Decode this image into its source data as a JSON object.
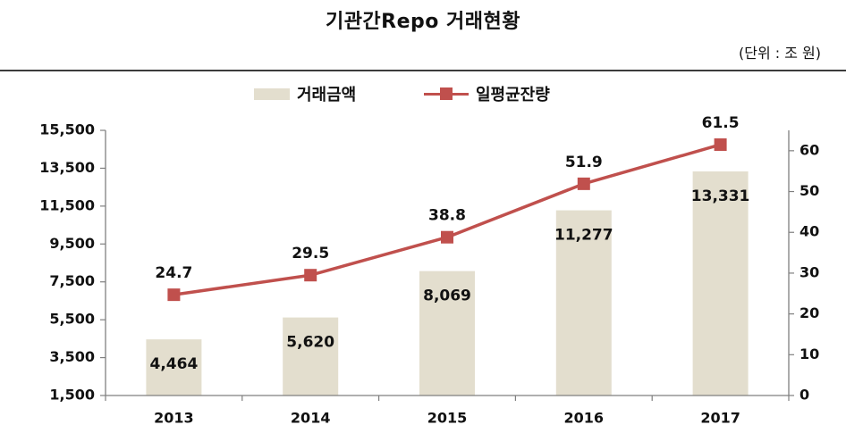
{
  "title": "기관간Repo 거래현황",
  "unit": "(단위 : 조 원)",
  "colors": {
    "bar": "#E3DECE",
    "line": "#C0504D",
    "axis": "#7F7F7F"
  },
  "chart_data": {
    "type": "bar+line",
    "categories": [
      "2013",
      "2014",
      "2015",
      "2016",
      "2017"
    ],
    "series": [
      {
        "name": "거래금액",
        "type": "bar",
        "axis": "left",
        "values": [
          4464,
          5620,
          8069,
          11277,
          13331
        ],
        "labels": [
          "4,464",
          "5,620",
          "8,069",
          "11,277",
          "13,331"
        ]
      },
      {
        "name": "일평균잔량",
        "type": "line",
        "axis": "right",
        "values": [
          24.7,
          29.5,
          38.8,
          51.9,
          61.5
        ],
        "labels": [
          "24.7",
          "29.5",
          "38.8",
          "51.9",
          "61.5"
        ]
      }
    ],
    "y_left": {
      "ylim": [
        1500,
        15500
      ],
      "ticks": [
        1500,
        3500,
        5500,
        7500,
        9500,
        11500,
        13500,
        15500
      ],
      "tick_labels": [
        "1,500",
        "3,500",
        "5,500",
        "7,500",
        "9,500",
        "11,500",
        "13,500",
        "15,500"
      ]
    },
    "y_right": {
      "ylim": [
        0,
        65
      ],
      "ticks": [
        0,
        10,
        20,
        30,
        40,
        50,
        60
      ],
      "tick_labels": [
        "0",
        "10",
        "20",
        "30",
        "40",
        "50",
        "60"
      ]
    },
    "grid": false,
    "legend_position": "top-center"
  }
}
